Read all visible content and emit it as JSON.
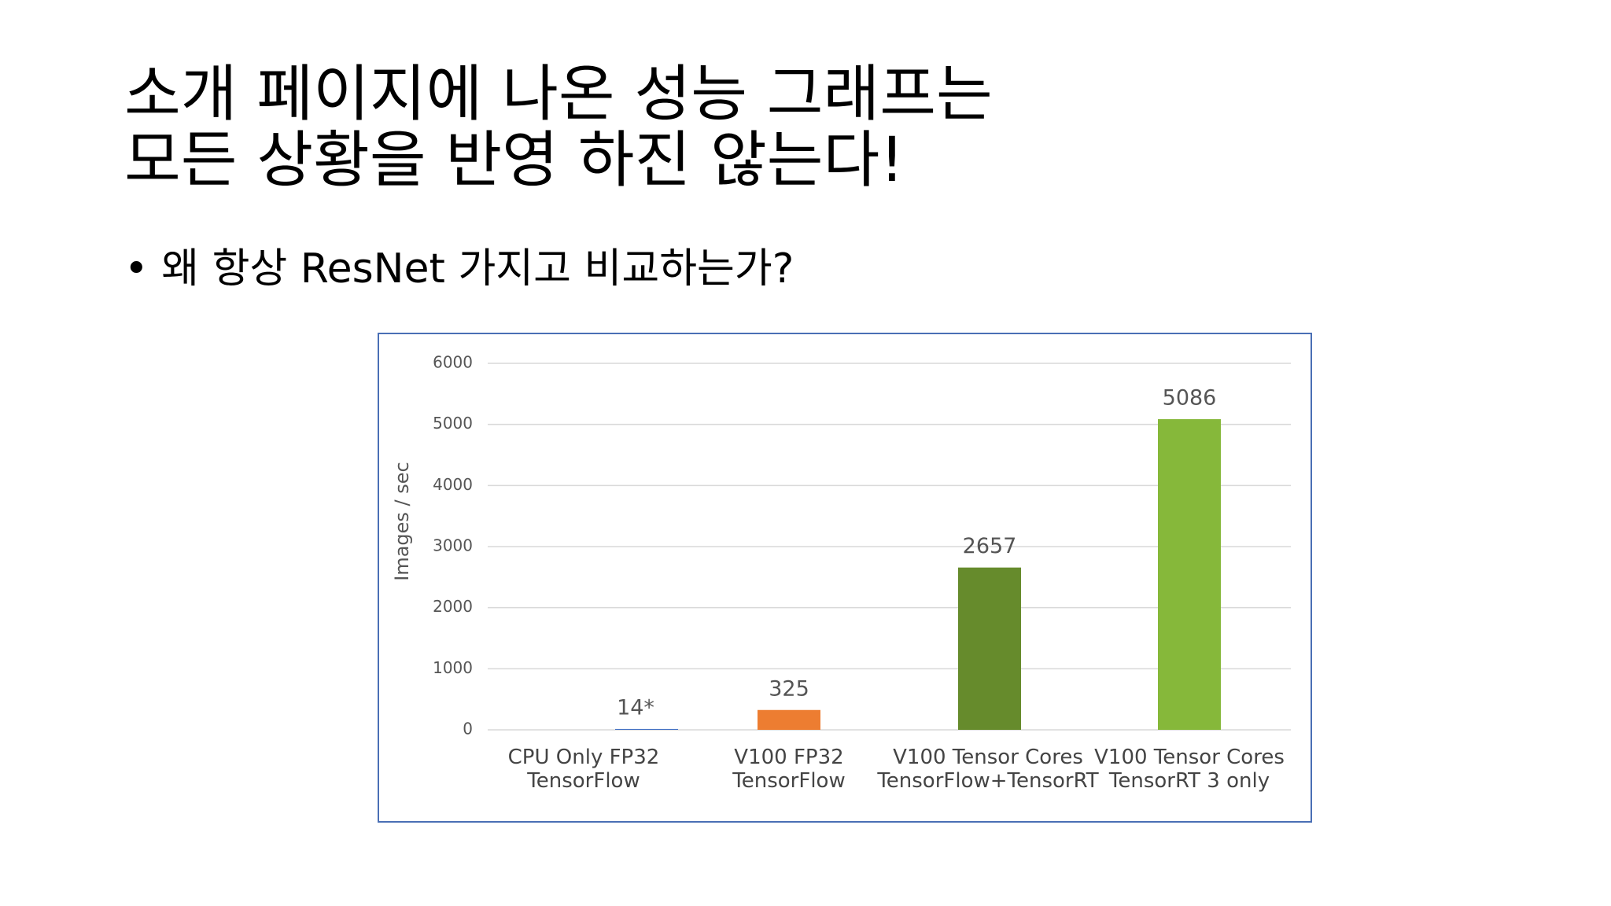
{
  "slide": {
    "title_lines": [
      "소개 페이지에 나온 성능 그래프는",
      "모든 상황을 반영 하진 않는다!"
    ],
    "bullet": "왜 항상 ResNet 가지고 비교하는가?"
  },
  "chart_data": {
    "type": "bar",
    "y_label": "Images / sec",
    "categories": [
      "CPU Only FP32\nTensorFlow",
      "V100 FP32\nTensorFlow",
      "V100 Tensor Cores\nTensorFlow+TensorRT",
      "V100 Tensor Cores\nTensorRT 3 only"
    ],
    "values": [
      14,
      325,
      2657,
      5086
    ],
    "value_labels": [
      "14*",
      "325",
      "2657",
      "5086"
    ],
    "colors": [
      "#4472c4",
      "#ed7d31",
      "#668b2c",
      "#86b83a"
    ],
    "ylim": [
      0,
      6000
    ],
    "yticks": [
      0,
      1000,
      2000,
      3000,
      4000,
      5000,
      6000
    ],
    "grid": true
  }
}
